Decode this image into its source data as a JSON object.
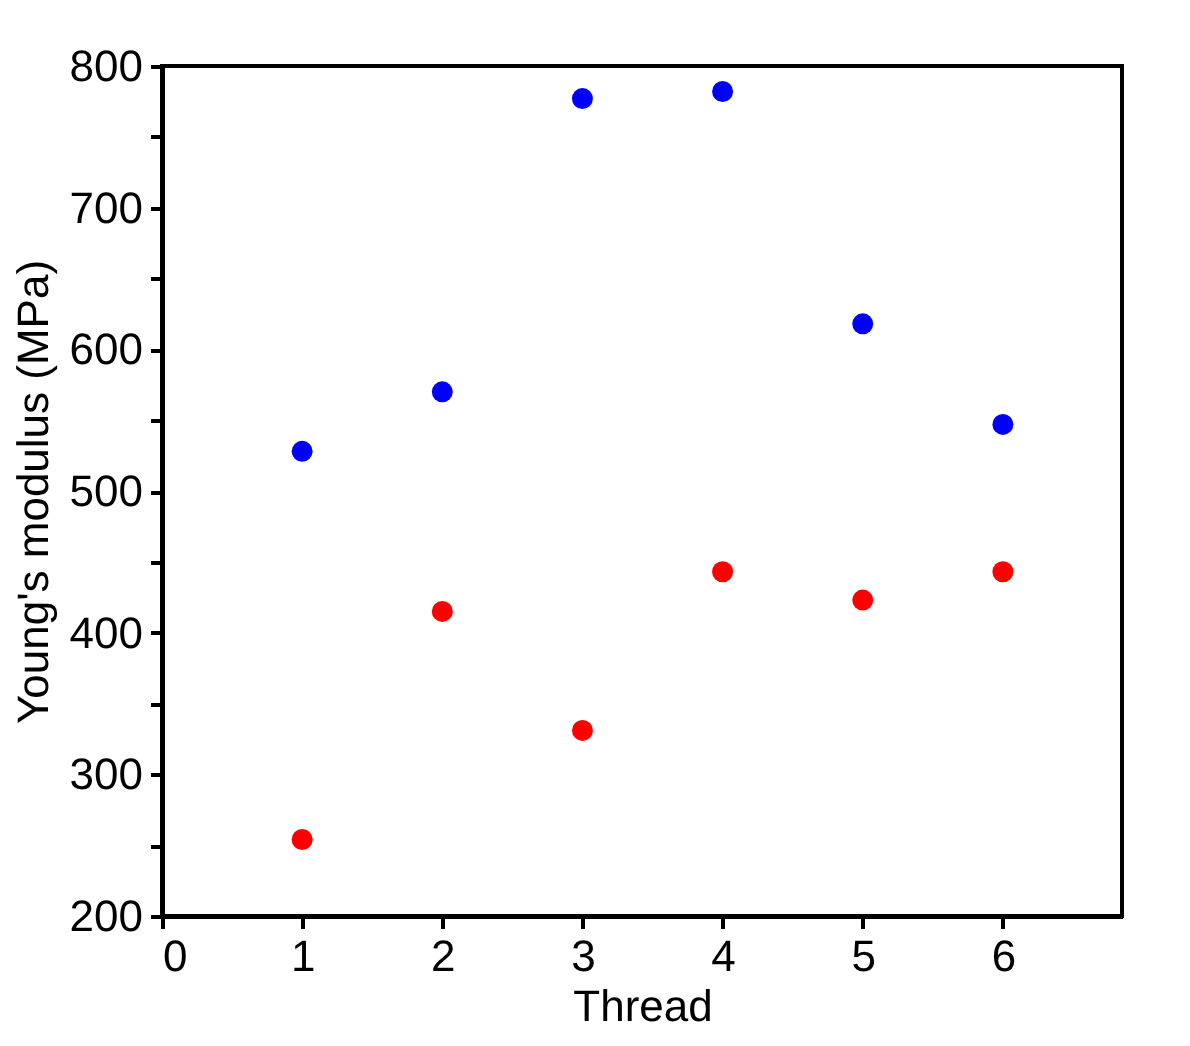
{
  "chart_data": {
    "type": "scatter",
    "xlabel": "Thread",
    "ylabel": "Young's modulus (MPa)",
    "x": [
      1,
      2,
      3,
      4,
      5,
      6
    ],
    "series": [
      {
        "color": "#0000ff",
        "values": [
          528,
          570,
          777,
          782,
          618,
          547
        ]
      },
      {
        "color": "#ff0000",
        "values": [
          254,
          415,
          331,
          443,
          423,
          443
        ]
      }
    ],
    "xlim": [
      0,
      6.85
    ],
    "xticks": [
      0,
      1,
      2,
      3,
      4,
      5,
      6
    ],
    "ylim": [
      200,
      800
    ],
    "yticks": [
      200,
      {
        "value": 250,
        "label": null
      },
      300,
      {
        "value": 350,
        "label": null
      },
      400,
      {
        "value": 450,
        "label": null
      },
      500,
      {
        "value": 550,
        "label": null
      },
      600,
      {
        "value": 650,
        "label": null
      },
      700,
      {
        "value": 750,
        "label": null
      },
      800
    ],
    "grid": false,
    "legend": false,
    "marker": "circle"
  }
}
